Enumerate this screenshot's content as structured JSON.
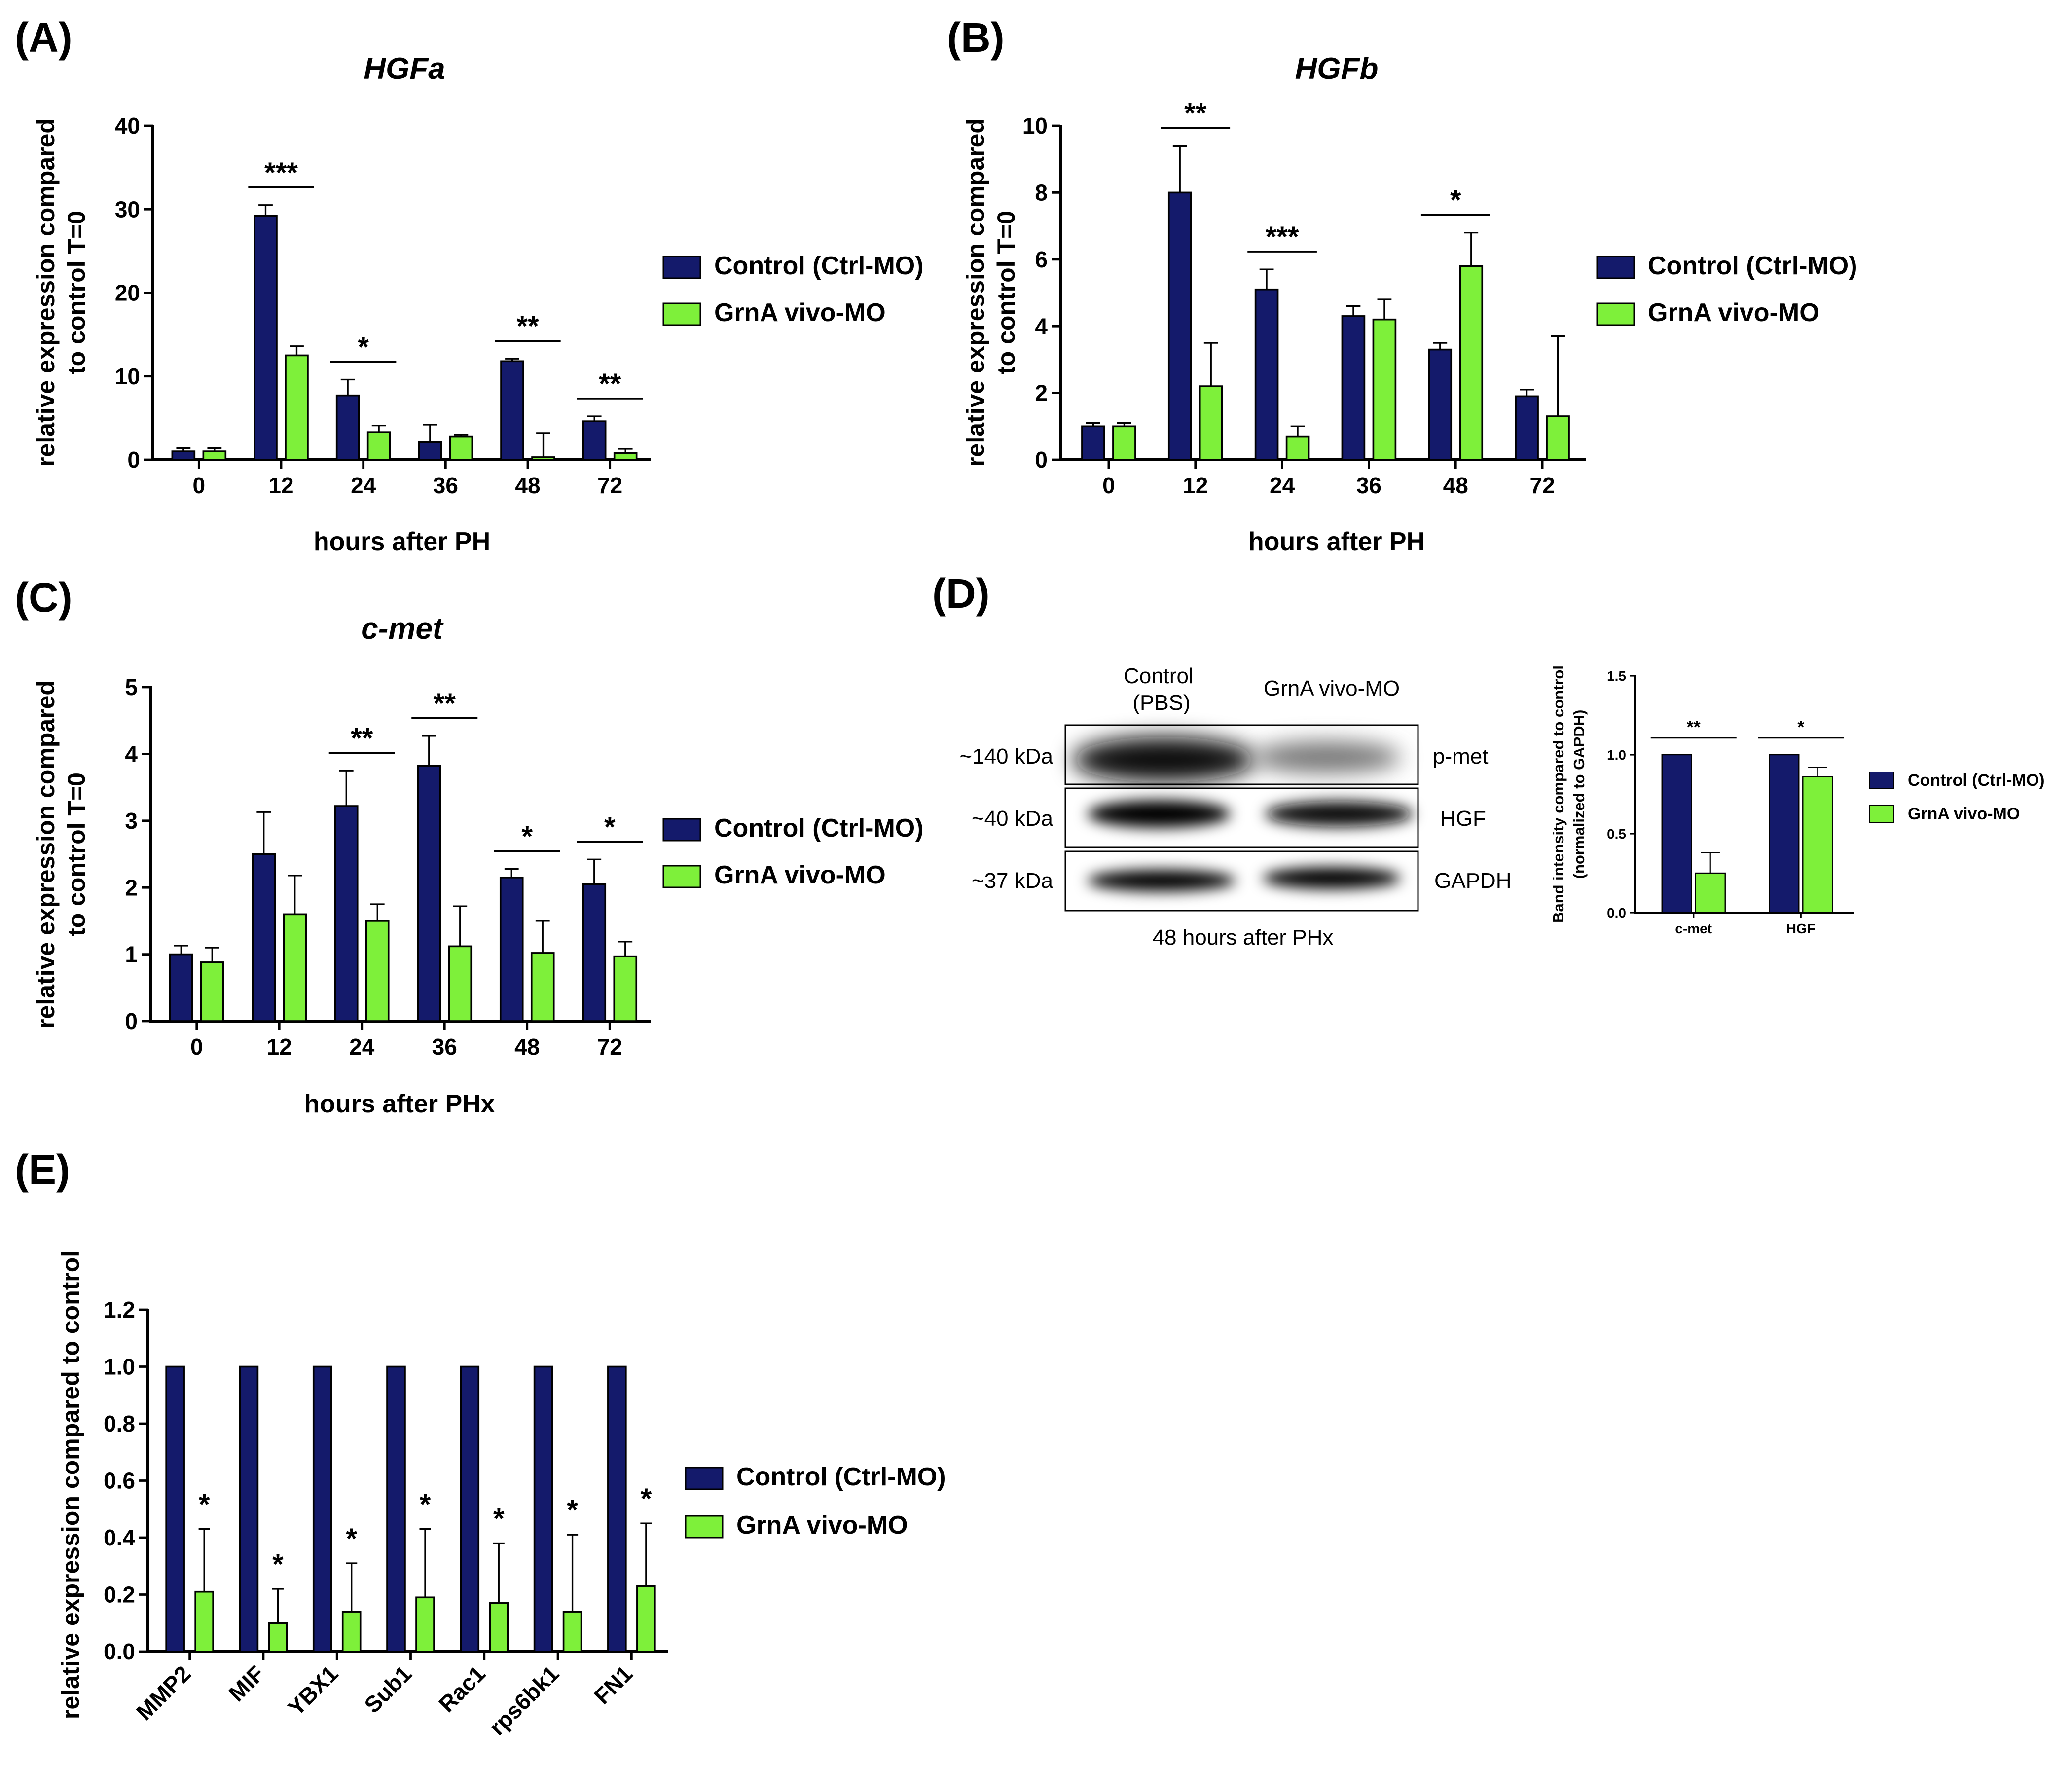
{
  "colors": {
    "control": "#141a6b",
    "grna": "#7ef03a",
    "axis": "#000000"
  },
  "legend": {
    "control": "Control (Ctrl-MO)",
    "grna": "GrnA vivo-MO"
  },
  "chart_data": [
    {
      "id": "A",
      "panel_label": "(A)",
      "type": "bar",
      "title": "HGFa",
      "ylabel": [
        "relative expression compared",
        "to control T=0"
      ],
      "xlabel": "hours after PH",
      "ylim": [
        0,
        40
      ],
      "yticks": [
        "0",
        "10",
        "20",
        "30",
        "40"
      ],
      "categories": [
        "0",
        "12",
        "24",
        "36",
        "48",
        "72"
      ],
      "series": [
        {
          "name": "Control (Ctrl-MO)",
          "values": [
            1.0,
            29.2,
            7.7,
            2.1,
            11.8,
            4.6
          ],
          "errors": [
            0.4,
            1.3,
            1.9,
            2.1,
            0.3,
            0.6
          ]
        },
        {
          "name": "GrnA vivo-MO",
          "values": [
            1.0,
            12.5,
            3.3,
            2.8,
            0.3,
            0.8
          ],
          "errors": [
            0.4,
            1.1,
            0.8,
            0.2,
            2.9,
            0.5
          ]
        }
      ],
      "significance": [
        "",
        "***",
        "*",
        "",
        "**",
        "**"
      ]
    },
    {
      "id": "B",
      "panel_label": "(B)",
      "type": "bar",
      "title": "HGFb",
      "ylabel": [
        "relative expression compared",
        "to control T=0"
      ],
      "xlabel": "hours after PH",
      "ylim": [
        0,
        10
      ],
      "yticks": [
        "0",
        "2",
        "4",
        "6",
        "8",
        "10"
      ],
      "categories": [
        "0",
        "12",
        "24",
        "36",
        "48",
        "72"
      ],
      "series": [
        {
          "name": "Control (Ctrl-MO)",
          "values": [
            1.0,
            8.0,
            5.1,
            4.3,
            3.3,
            1.9
          ],
          "errors": [
            0.1,
            1.4,
            0.6,
            0.3,
            0.2,
            0.2
          ]
        },
        {
          "name": "GrnA vivo-MO",
          "values": [
            1.0,
            2.2,
            0.7,
            4.2,
            5.8,
            1.3
          ],
          "errors": [
            0.1,
            1.3,
            0.3,
            0.6,
            1.0,
            2.4
          ]
        }
      ],
      "significance": [
        "",
        "**",
        "***",
        "",
        "*",
        ""
      ]
    },
    {
      "id": "C",
      "panel_label": "(C)",
      "type": "bar",
      "title": "c-met",
      "ylabel": [
        "relative expression compared",
        "to control T=0"
      ],
      "xlabel": "hours after PHx",
      "ylim": [
        0,
        5
      ],
      "yticks": [
        "0",
        "1",
        "2",
        "3",
        "4",
        "5"
      ],
      "categories": [
        "0",
        "12",
        "24",
        "36",
        "48",
        "72"
      ],
      "series": [
        {
          "name": "Control (Ctrl-MO)",
          "values": [
            1.0,
            2.5,
            3.22,
            3.82,
            2.15,
            2.05
          ],
          "errors": [
            0.13,
            0.63,
            0.53,
            0.45,
            0.13,
            0.37
          ]
        },
        {
          "name": "GrnA vivo-MO",
          "values": [
            0.88,
            1.6,
            1.5,
            1.12,
            1.02,
            0.97
          ],
          "errors": [
            0.22,
            0.58,
            0.25,
            0.6,
            0.48,
            0.22
          ]
        }
      ],
      "significance": [
        "",
        "",
        "**",
        "**",
        "*",
        "*"
      ]
    },
    {
      "id": "D",
      "panel_label": "(D)",
      "type": "bar",
      "title": "",
      "ylabel": [
        "Band intensity compared to control",
        "(normalized to GAPDH)"
      ],
      "xlabel": "",
      "ylim": [
        0,
        1.5
      ],
      "yticks": [
        "0.0",
        "0.5",
        "1.0",
        "1.5"
      ],
      "categories": [
        "c-met",
        "HGF"
      ],
      "series": [
        {
          "name": "Control (Ctrl-MO)",
          "values": [
            1.0,
            1.0
          ],
          "errors": [
            0,
            0
          ]
        },
        {
          "name": "GrnA vivo-MO",
          "values": [
            0.25,
            0.86
          ],
          "errors": [
            0.13,
            0.06
          ]
        }
      ],
      "significance": [
        "**",
        "*"
      ]
    },
    {
      "id": "E",
      "panel_label": "(E)",
      "type": "bar",
      "title": "",
      "ylabel": [
        "relative expression compared to control"
      ],
      "xlabel": "",
      "ylim": [
        0,
        1.2
      ],
      "yticks": [
        "0.0",
        "0.2",
        "0.4",
        "0.6",
        "0.8",
        "1.0",
        "1.2"
      ],
      "categories": [
        "MMP2",
        "MIF",
        "YBX1",
        "Sub1",
        "Rac1",
        "rps6bk1",
        "FN1"
      ],
      "series": [
        {
          "name": "Control (Ctrl-MO)",
          "values": [
            1.0,
            1.0,
            1.0,
            1.0,
            1.0,
            1.0,
            1.0
          ],
          "errors": [
            0,
            0,
            0,
            0,
            0,
            0,
            0
          ]
        },
        {
          "name": "GrnA vivo-MO",
          "values": [
            0.21,
            0.1,
            0.14,
            0.19,
            0.17,
            0.14,
            0.23
          ],
          "errors": [
            0.22,
            0.12,
            0.17,
            0.24,
            0.21,
            0.27,
            0.22
          ]
        }
      ],
      "significance": [
        "*",
        "*",
        "*",
        "*",
        "*",
        "*",
        "*"
      ]
    }
  ],
  "blot": {
    "lane_labels": [
      "Control\n(PBS)",
      "GrnA vivo-MO"
    ],
    "rows": [
      {
        "kda": "~140 kDa",
        "protein": "p-met"
      },
      {
        "kda": "~40 kDa",
        "protein": "HGF"
      },
      {
        "kda": "~37 kDa",
        "protein": "GAPDH"
      }
    ],
    "caption": "48 hours after PHx"
  }
}
